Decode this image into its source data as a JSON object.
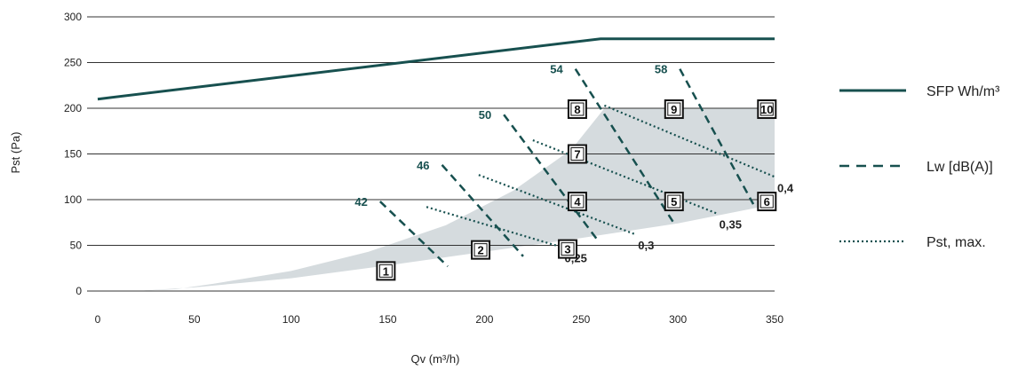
{
  "chart_data": {
    "type": "line",
    "title": "",
    "xlabel": "Qv (m³/h)",
    "ylabel": "Pst (Pa)",
    "xlim": [
      0,
      350
    ],
    "ylim": [
      0,
      300
    ],
    "xticks": [
      "0",
      "50",
      "100",
      "150",
      "200",
      "250",
      "300",
      "350"
    ],
    "yticks": [
      "0",
      "50",
      "100",
      "150",
      "200",
      "250",
      "300"
    ],
    "grid": "horizontal",
    "legend_position": "right",
    "colors": {
      "primary": "#17504f",
      "area": "#d5dbde",
      "grid": "#333333",
      "box": "#111111"
    },
    "operating_area": [
      [
        20,
        0
      ],
      [
        40,
        2
      ],
      [
        60,
        8
      ],
      [
        100,
        22
      ],
      [
        140,
        43
      ],
      [
        180,
        72
      ],
      [
        215,
        110
      ],
      [
        245,
        155
      ],
      [
        262,
        200
      ],
      [
        350,
        200
      ],
      [
        350,
        95
      ],
      [
        300,
        74
      ],
      [
        250,
        58
      ],
      [
        200,
        43
      ],
      [
        150,
        28
      ],
      [
        100,
        14
      ],
      [
        50,
        4
      ],
      [
        20,
        0
      ]
    ],
    "series": [
      {
        "name": "SFP Wh/m³",
        "style": "solid",
        "points": [
          [
            0,
            210
          ],
          [
            260,
            276
          ],
          [
            350,
            276
          ]
        ]
      },
      {
        "name": "Lw [dB(A)]",
        "style": "dashed",
        "lines": [
          {
            "label": "42",
            "points": [
              [
                146,
                98
              ],
              [
                181,
                27
              ]
            ]
          },
          {
            "label": "46",
            "points": [
              [
                178,
                138
              ],
              [
                220,
                38
              ]
            ]
          },
          {
            "label": "50",
            "points": [
              [
                210,
                193
              ],
              [
                258,
                57
              ]
            ]
          },
          {
            "label": "54",
            "points": [
              [
                247,
                243
              ],
              [
                298,
                74
              ]
            ]
          },
          {
            "label": "58",
            "points": [
              [
                301,
                243
              ],
              [
                339,
                95
              ]
            ]
          }
        ]
      },
      {
        "name": "Pst, max.",
        "style": "dotted",
        "lines": [
          {
            "label": "0,25",
            "points": [
              [
                170,
                92
              ],
              [
                240,
                48
              ]
            ]
          },
          {
            "label": "0,3",
            "points": [
              [
                197,
                127
              ],
              [
                278,
                62
              ]
            ]
          },
          {
            "label": "0,35",
            "points": [
              [
                225,
                165
              ],
              [
                320,
                85
              ]
            ]
          },
          {
            "label": "0,4",
            "points": [
              [
                262,
                203
              ],
              [
                350,
                125
              ]
            ]
          }
        ]
      }
    ],
    "operating_points": [
      {
        "label": "1",
        "x": 149,
        "y": 22
      },
      {
        "label": "2",
        "x": 198,
        "y": 45
      },
      {
        "label": "3",
        "x": 243,
        "y": 46
      },
      {
        "label": "4",
        "x": 248,
        "y": 98
      },
      {
        "label": "5",
        "x": 298,
        "y": 98
      },
      {
        "label": "6",
        "x": 346,
        "y": 98
      },
      {
        "label": "7",
        "x": 248,
        "y": 150
      },
      {
        "label": "8",
        "x": 248,
        "y": 199
      },
      {
        "label": "9",
        "x": 298,
        "y": 199
      },
      {
        "label": "10",
        "x": 346,
        "y": 199
      }
    ]
  }
}
